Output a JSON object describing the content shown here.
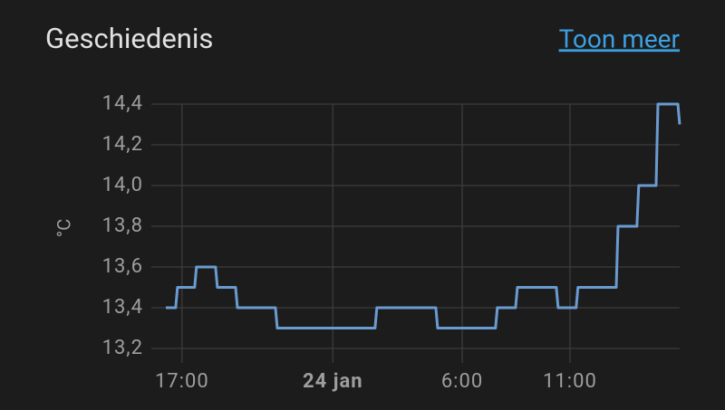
{
  "card": {
    "title": "Geschiedenis",
    "link": "Toon meer"
  },
  "chart_data": {
    "type": "line",
    "step": true,
    "y_label": "°C",
    "color": "#6a9bd0",
    "grid": true,
    "x": [
      16.25,
      16.79,
      17.67,
      18.64,
      19.57,
      21.42,
      26.04,
      28.86,
      31.63,
      32.56,
      34.45,
      35.37,
      37.23,
      38.19,
      39.08,
      40.09
    ],
    "values": [
      13.4,
      13.5,
      13.6,
      13.5,
      13.4,
      13.3,
      13.4,
      13.3,
      13.4,
      13.5,
      13.4,
      13.5,
      13.8,
      14.0,
      14.4,
      14.3
    ],
    "xlim": [
      16.25,
      40.09
    ],
    "xticks": [
      {
        "value": 17,
        "label": "17:00"
      },
      {
        "value": 24,
        "label": "24 jan"
      },
      {
        "value": 30,
        "label": "6:00"
      },
      {
        "value": 35,
        "label": "11:00"
      }
    ],
    "ylim": [
      13.2,
      14.4
    ],
    "yticks": [
      {
        "value": 13.2,
        "label": "13,2"
      },
      {
        "value": 13.4,
        "label": "13,4"
      },
      {
        "value": 13.6,
        "label": "13,6"
      },
      {
        "value": 13.8,
        "label": "13,8"
      },
      {
        "value": 14.0,
        "label": "14,0"
      },
      {
        "value": 14.2,
        "label": "14,2"
      },
      {
        "value": 14.4,
        "label": "14,4"
      }
    ]
  }
}
